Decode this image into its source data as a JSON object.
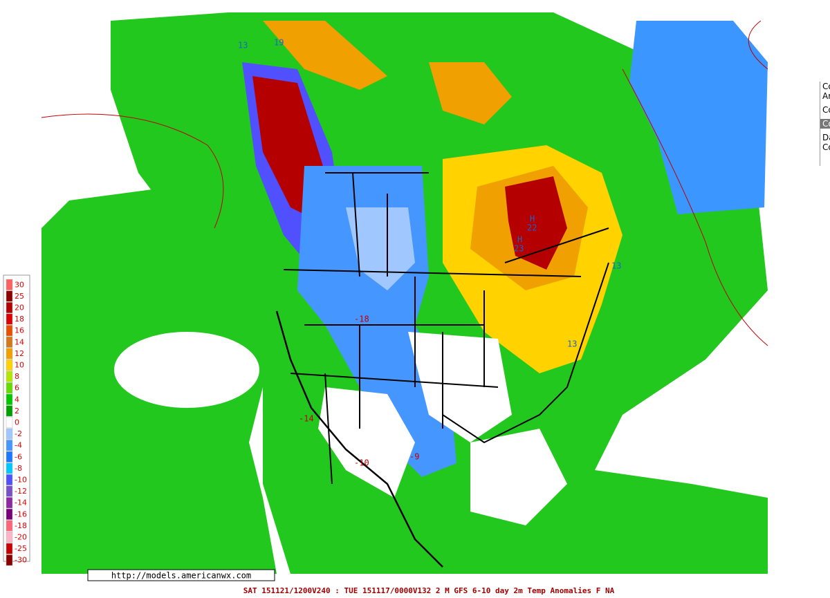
{
  "legend": [
    {
      "label": "30",
      "color": "#ff6060"
    },
    {
      "label": "25",
      "color": "#8b0000"
    },
    {
      "label": "20",
      "color": "#b40000"
    },
    {
      "label": "18",
      "color": "#dc0000"
    },
    {
      "label": "16",
      "color": "#e65000"
    },
    {
      "label": "14",
      "color": "#d2781e"
    },
    {
      "label": "12",
      "color": "#f0a000"
    },
    {
      "label": "10",
      "color": "#ffd200"
    },
    {
      "label": "8",
      "color": "#b4e600"
    },
    {
      "label": "6",
      "color": "#64dc00"
    },
    {
      "label": "4",
      "color": "#00c800"
    },
    {
      "label": "2",
      "color": "#00a000"
    },
    {
      "label": "0",
      "color": "#ffffff"
    },
    {
      "label": "-2",
      "color": "#a0c8ff"
    },
    {
      "label": "-4",
      "color": "#4696ff"
    },
    {
      "label": "-6",
      "color": "#1e78ff"
    },
    {
      "label": "-8",
      "color": "#00c8ff"
    },
    {
      "label": "-10",
      "color": "#5050ff"
    },
    {
      "label": "-12",
      "color": "#7850c8"
    },
    {
      "label": "-14",
      "color": "#8c28a0"
    },
    {
      "label": "-16",
      "color": "#780078"
    },
    {
      "label": "-18",
      "color": "#ff6478"
    },
    {
      "label": "-20",
      "color": "#ffb4c8"
    },
    {
      "label": "-25",
      "color": "#c80000"
    },
    {
      "label": "-30",
      "color": "#8b0000"
    }
  ],
  "map": {
    "labels": [
      "H",
      "22",
      "H",
      "23",
      "13",
      "13",
      "19",
      "-10",
      "-9",
      "-18",
      "-14",
      "13"
    ]
  },
  "url": "http://models.americanwx.com",
  "caption": "SAT 151121/1200V240 : TUE 151117/0000V132  2 M GFS 6-10 day 2m Temp Anomalies F NA",
  "side_panel": [
    "Co",
    "Ar",
    "Co",
    "Co",
    "Da",
    "Co"
  ]
}
